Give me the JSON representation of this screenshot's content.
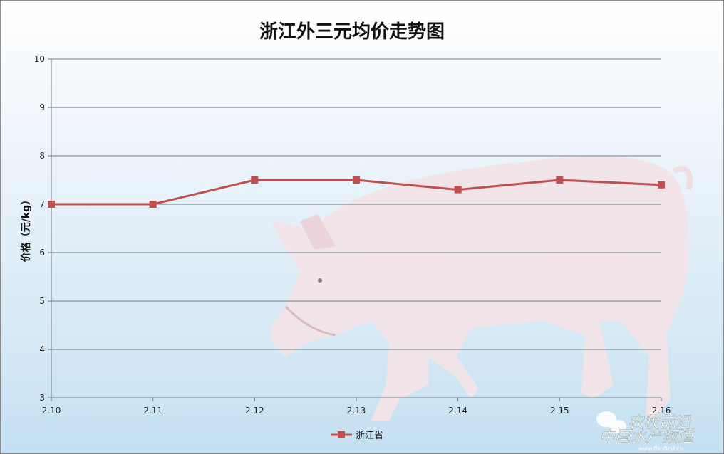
{
  "chart_data": {
    "type": "line",
    "title": "浙江外三元均价走势图",
    "xlabel": "",
    "ylabel": "价格（元/kg）",
    "categories": [
      "2.10",
      "2.11",
      "2.12",
      "2.13",
      "2.14",
      "2.15",
      "2.16"
    ],
    "series": [
      {
        "name": "浙江省",
        "values": [
          7,
          7,
          7.5,
          7.5,
          7.3,
          7.5,
          7.4
        ],
        "color": "#c0504d"
      }
    ],
    "ylim": [
      3,
      10
    ],
    "yticks": [
      3,
      4,
      5,
      6,
      7,
      8,
      9,
      10
    ],
    "grid": true,
    "legend": "bottom",
    "background_image": "pig"
  },
  "watermark": {
    "line1": "农牧前沿",
    "line2": "中国水产频道",
    "line3": "www.fishfirst.cn"
  }
}
